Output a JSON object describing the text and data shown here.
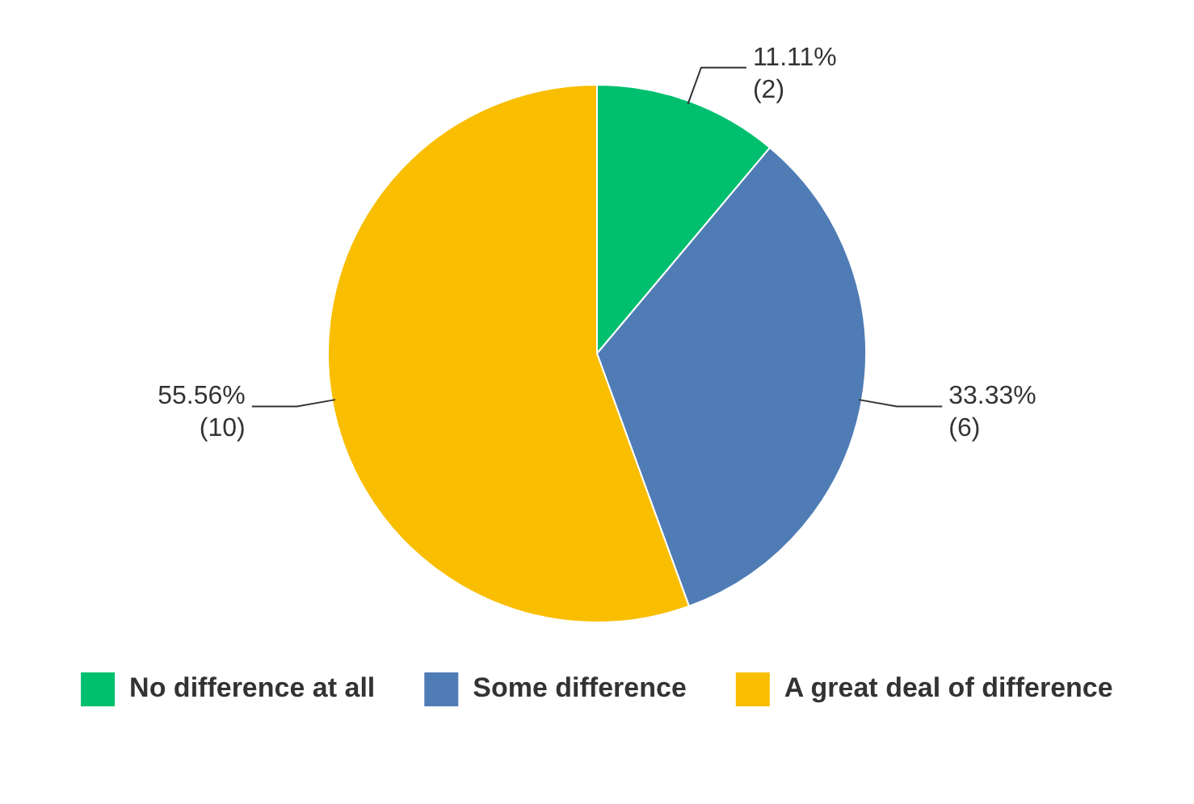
{
  "chart_data": {
    "type": "pie",
    "categories": [
      "No difference at all",
      "Some difference",
      "A great deal of difference"
    ],
    "values": [
      2,
      6,
      10
    ],
    "colors": [
      "#00bf6f",
      "#507cb6",
      "#f9be00"
    ],
    "value_labels": [
      "11.11%\n(2)",
      "33.33%\n(6)",
      "55.56%\n(10)"
    ],
    "legend": "bottom"
  }
}
